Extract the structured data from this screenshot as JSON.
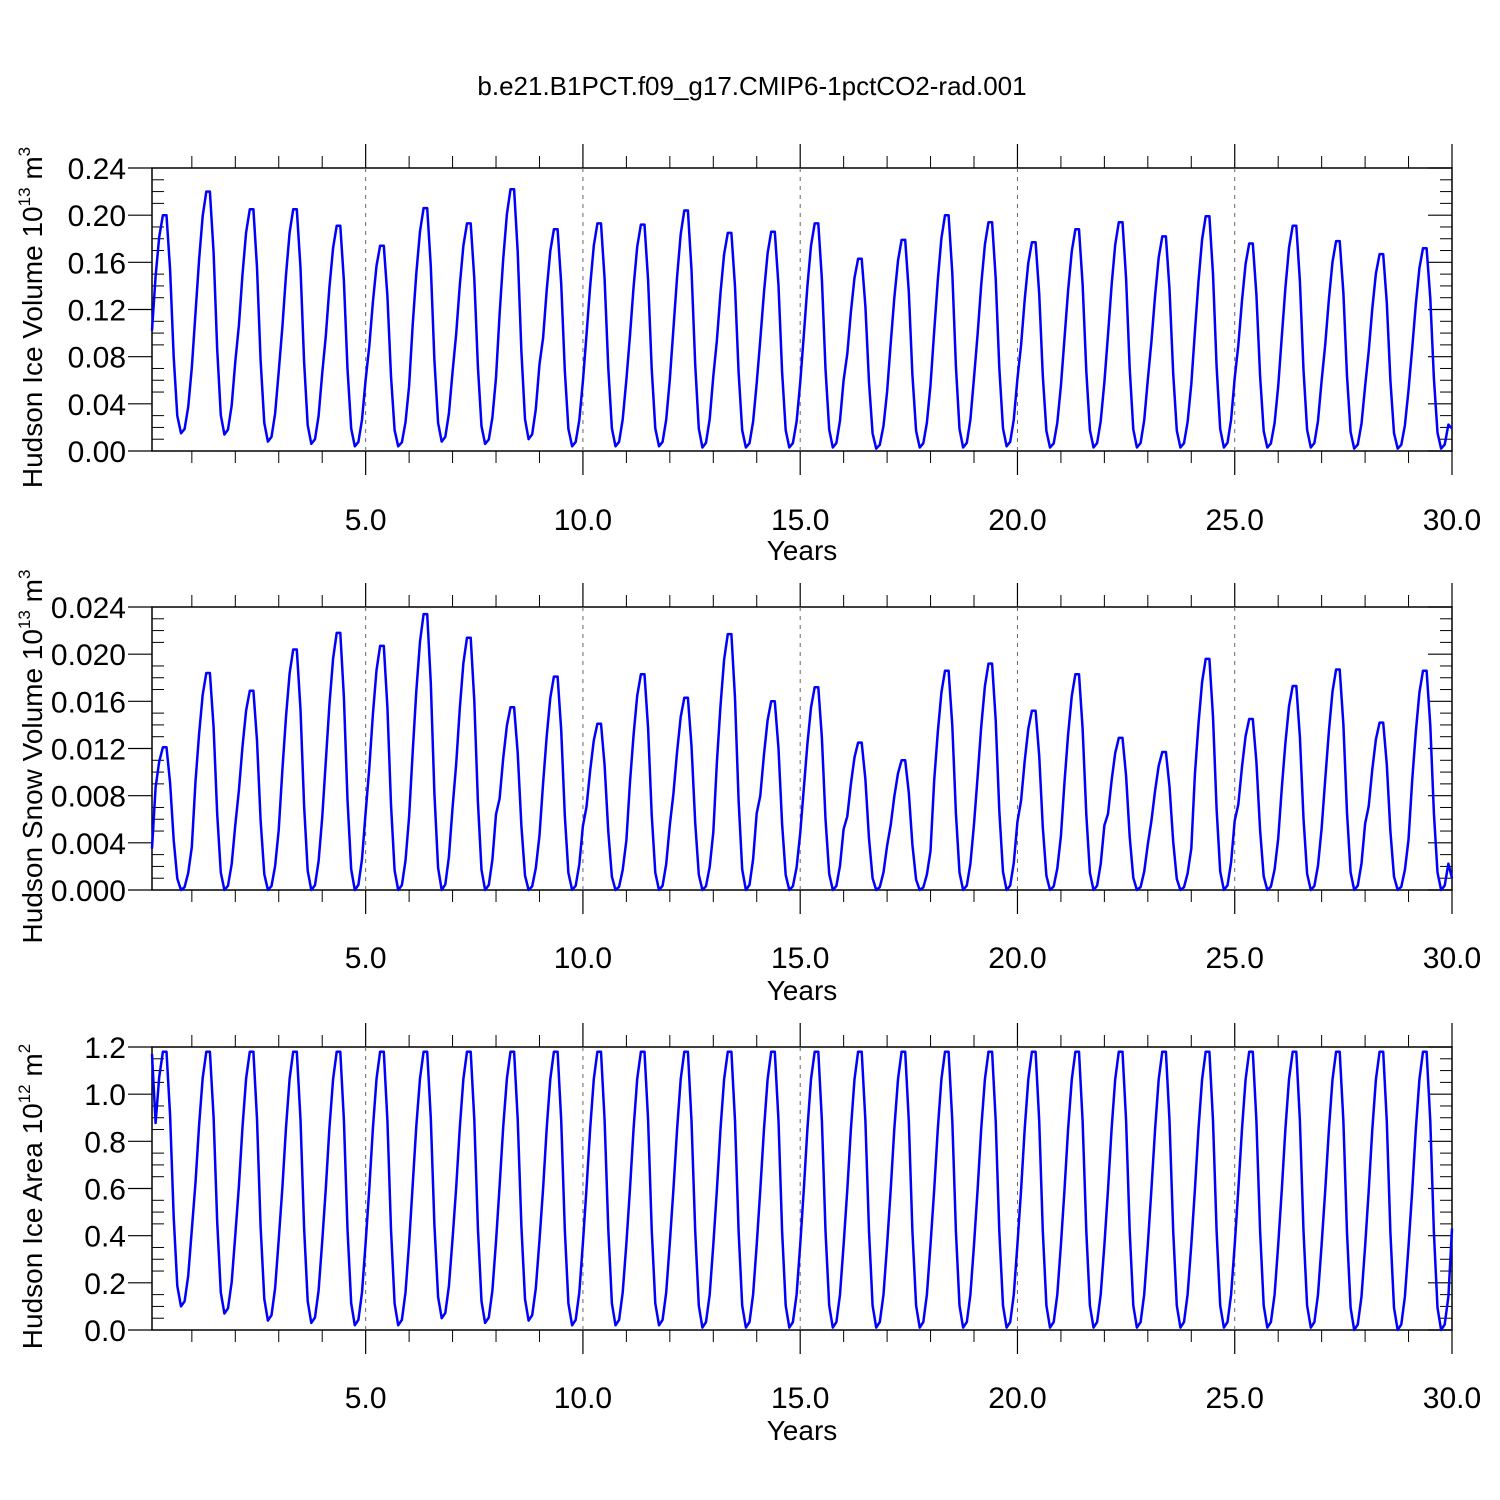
{
  "figure": {
    "title": "b.e21.B1PCT.f09_g17.CMIP6-1pctCO2-rad.001"
  },
  "chart_data": [
    {
      "type": "line",
      "xlabel": "Years",
      "ylabel": "Hudson Ice Volume 10",
      "ylabel_exp": "13",
      "ylabel_unit": " m",
      "ylabel_unit_exp": "3",
      "xlim": [
        0.083,
        30.0
      ],
      "ylim": [
        0.0,
        0.24
      ],
      "xticks": [
        5,
        10,
        15,
        20,
        25,
        30
      ],
      "xtick_labels": [
        "5.0",
        "10.0",
        "15.0",
        "20.0",
        "25.0",
        "30.0"
      ],
      "yticks": [
        0.0,
        0.04,
        0.08,
        0.12,
        0.16,
        0.2,
        0.24
      ],
      "ytick_labels": [
        "0.00",
        "0.04",
        "0.08",
        "0.12",
        "0.16",
        "0.20",
        "0.24"
      ],
      "grid": "vertical dashed at 5-year ticks",
      "series": [
        {
          "color": "#0000ff",
          "peaks": [
            0.2,
            0.22,
            0.205,
            0.205,
            0.191,
            0.174,
            0.206,
            0.193,
            0.222,
            0.188,
            0.193,
            0.192,
            0.204,
            0.185,
            0.186,
            0.193,
            0.163,
            0.179,
            0.2,
            0.194,
            0.177,
            0.188,
            0.194,
            0.182,
            0.199,
            0.176,
            0.191,
            0.178,
            0.167,
            0.172
          ],
          "troughs": [
            0.015,
            0.014,
            0.008,
            0.006,
            0.004,
            0.004,
            0.008,
            0.006,
            0.01,
            0.004,
            0.004,
            0.004,
            0.003,
            0.003,
            0.003,
            0.003,
            0.002,
            0.003,
            0.003,
            0.004,
            0.003,
            0.003,
            0.003,
            0.003,
            0.003,
            0.003,
            0.003,
            0.002,
            0.002,
            0.002
          ],
          "start": 0.102,
          "end": 0.019
        }
      ]
    },
    {
      "type": "line",
      "xlabel": "Years",
      "ylabel": "Hudson Snow Volume 10",
      "ylabel_exp": "13",
      "ylabel_unit": " m",
      "ylabel_unit_exp": "3",
      "xlim": [
        0.083,
        30.0
      ],
      "ylim": [
        0.0,
        0.024
      ],
      "xticks": [
        5,
        10,
        15,
        20,
        25,
        30
      ],
      "xtick_labels": [
        "5.0",
        "10.0",
        "15.0",
        "20.0",
        "25.0",
        "30.0"
      ],
      "yticks": [
        0.0,
        0.004,
        0.008,
        0.012,
        0.016,
        0.02,
        0.024
      ],
      "ytick_labels": [
        "0.000",
        "0.004",
        "0.008",
        "0.012",
        "0.016",
        "0.020",
        "0.024"
      ],
      "grid": "vertical dashed at 5-year ticks",
      "series": [
        {
          "color": "#0000ff",
          "peaks": [
            0.0121,
            0.0184,
            0.0169,
            0.0204,
            0.0218,
            0.0207,
            0.0234,
            0.0214,
            0.0155,
            0.0181,
            0.0141,
            0.0183,
            0.0163,
            0.0217,
            0.016,
            0.0172,
            0.0125,
            0.011,
            0.0186,
            0.0192,
            0.0152,
            0.0183,
            0.0129,
            0.0117,
            0.0196,
            0.0145,
            0.0173,
            0.0187,
            0.0142,
            0.0186
          ],
          "troughs": [
            0.0,
            0.0,
            0.0,
            0.0,
            0.0,
            0.0,
            0.0,
            0.0,
            0.0,
            0.0,
            0.0,
            0.0,
            0.0,
            0.0,
            0.0,
            0.0,
            0.0,
            0.0,
            0.0,
            0.0,
            0.0,
            0.0,
            0.0,
            0.0,
            0.0,
            0.0,
            0.0,
            0.0,
            0.0,
            0.0
          ],
          "start": 0.0035,
          "end": 0.001
        }
      ]
    },
    {
      "type": "line",
      "xlabel": "Years",
      "ylabel": "Hudson Ice Area 10",
      "ylabel_exp": "12",
      "ylabel_unit": " m",
      "ylabel_unit_exp": "2",
      "xlim": [
        0.083,
        30.0
      ],
      "ylim": [
        0.0,
        1.2
      ],
      "xticks": [
        5,
        10,
        15,
        20,
        25,
        30
      ],
      "xtick_labels": [
        "5.0",
        "10.0",
        "15.0",
        "20.0",
        "25.0",
        "30.0"
      ],
      "yticks": [
        0.0,
        0.2,
        0.4,
        0.6,
        0.8,
        1.0,
        1.2
      ],
      "ytick_labels": [
        "0.0",
        "0.2",
        "0.4",
        "0.6",
        "0.8",
        "1.0",
        "1.2"
      ],
      "grid": "vertical dashed at 5-year ticks",
      "series": [
        {
          "color": "#0000ff",
          "peaks": [
            1.18,
            1.18,
            1.18,
            1.18,
            1.18,
            1.18,
            1.18,
            1.18,
            1.18,
            1.18,
            1.18,
            1.18,
            1.18,
            1.18,
            1.18,
            1.18,
            1.18,
            1.18,
            1.18,
            1.18,
            1.18,
            1.18,
            1.18,
            1.18,
            1.18,
            1.18,
            1.18,
            1.18,
            1.18,
            1.18
          ],
          "troughs": [
            0.1,
            0.07,
            0.04,
            0.03,
            0.02,
            0.02,
            0.05,
            0.03,
            0.04,
            0.02,
            0.02,
            0.02,
            0.01,
            0.01,
            0.01,
            0.01,
            0.01,
            0.01,
            0.01,
            0.01,
            0.01,
            0.01,
            0.01,
            0.01,
            0.01,
            0.01,
            0.01,
            0.0,
            0.0,
            0.0
          ],
          "start": 1.17,
          "end": 0.43
        }
      ]
    }
  ]
}
